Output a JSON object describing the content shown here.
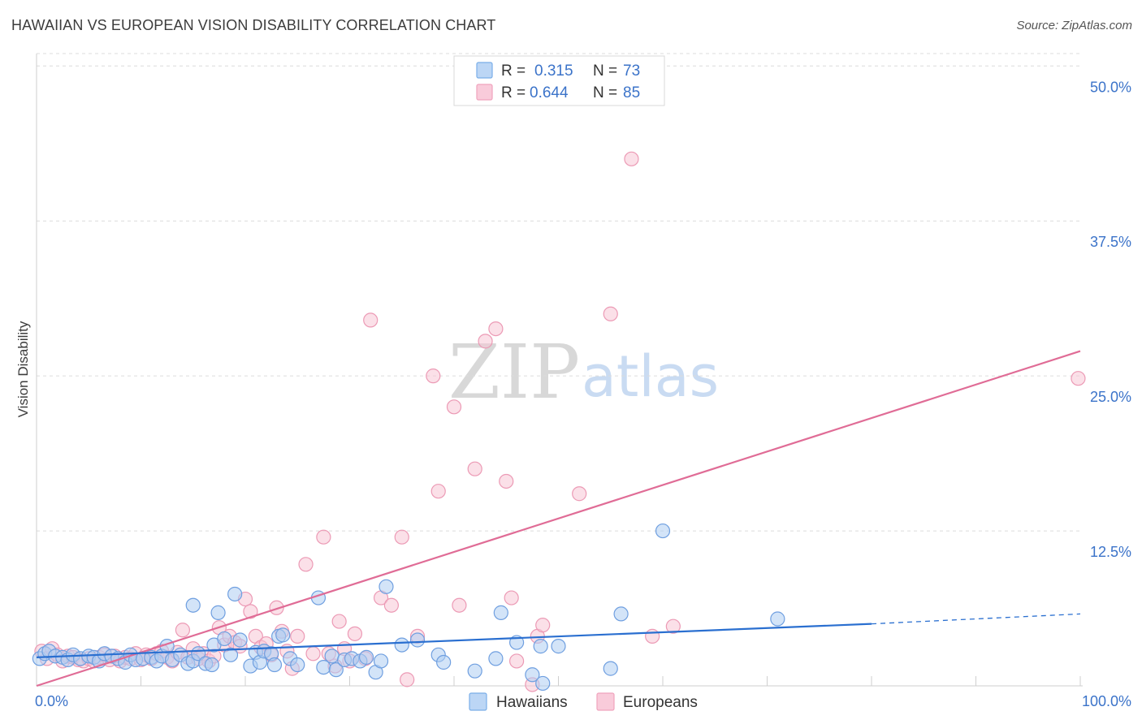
{
  "header": {
    "title": "HAWAIIAN VS EUROPEAN VISION DISABILITY CORRELATION CHART",
    "source": "Source: ZipAtlas.com"
  },
  "watermark": {
    "zip": "ZIP",
    "atlas": "atlas"
  },
  "legend_top": {
    "rows": [
      {
        "r_label": "R =",
        "r_value": "0.315",
        "n_label": "N =",
        "n_value": "73",
        "color": "#7aaee8"
      },
      {
        "r_label": "R =",
        "r_value": "0.644",
        "n_label": "N =",
        "n_value": "85",
        "color": "#f0a3bd"
      }
    ]
  },
  "legend_bottom": {
    "items": [
      {
        "label": "Hawaiians",
        "color": "#7aaee8"
      },
      {
        "label": "Europeans",
        "color": "#f0a3bd"
      }
    ]
  },
  "colors": {
    "hawaiians_fill": "#aecdf3",
    "hawaiians_stroke": "#6f9fe0",
    "hawaiians_line": "#2a6fd0",
    "europeans_fill": "#f8c7d6",
    "europeans_stroke": "#ec9ab5",
    "europeans_line": "#e06c96",
    "grid": "#dcdcdc",
    "tick_text": "#3b73c9"
  },
  "chart_data": {
    "type": "scatter",
    "title": "HAWAIIAN VS EUROPEAN VISION DISABILITY CORRELATION CHART",
    "xlabel": "",
    "ylabel": "Vision Disability",
    "xlim": [
      0,
      100
    ],
    "ylim": [
      0,
      51
    ],
    "x_tick_labels": [
      "0.0%",
      "100.0%"
    ],
    "y_ticks": [
      12.5,
      25.0,
      37.5,
      50.0
    ],
    "y_tick_labels": [
      "12.5%",
      "25.0%",
      "37.5%",
      "50.0%"
    ],
    "grid": true,
    "legend_position": "top-center",
    "series": [
      {
        "name": "Hawaiians",
        "r": 0.315,
        "n": 73,
        "trend": {
          "x0": 0,
          "y0": 2.3,
          "x1": 80,
          "y1": 5.0,
          "dashed_to_x": 100,
          "dashed_to_y": 5.8
        },
        "points": [
          [
            0.3,
            2.2
          ],
          [
            0.8,
            2.6
          ],
          [
            1.2,
            2.8
          ],
          [
            1.8,
            2.4
          ],
          [
            2.5,
            2.3
          ],
          [
            3.0,
            2.1
          ],
          [
            3.5,
            2.5
          ],
          [
            4.2,
            2.2
          ],
          [
            5.0,
            2.4
          ],
          [
            5.5,
            2.3
          ],
          [
            6.0,
            2.0
          ],
          [
            6.5,
            2.6
          ],
          [
            7.2,
            2.4
          ],
          [
            7.8,
            2.2
          ],
          [
            8.5,
            1.9
          ],
          [
            9.0,
            2.5
          ],
          [
            9.5,
            2.1
          ],
          [
            10.2,
            2.2
          ],
          [
            11.0,
            2.3
          ],
          [
            11.5,
            2.0
          ],
          [
            12.0,
            2.4
          ],
          [
            12.5,
            3.2
          ],
          [
            13.0,
            2.1
          ],
          [
            13.8,
            2.5
          ],
          [
            14.5,
            1.8
          ],
          [
            15.0,
            2.0
          ],
          [
            15.5,
            2.6
          ],
          [
            16.2,
            1.8
          ],
          [
            16.8,
            1.7
          ],
          [
            15.0,
            6.5
          ],
          [
            17.0,
            3.3
          ],
          [
            17.4,
            5.9
          ],
          [
            18.0,
            3.8
          ],
          [
            18.6,
            2.5
          ],
          [
            19.0,
            7.4
          ],
          [
            19.5,
            3.7
          ],
          [
            20.5,
            1.6
          ],
          [
            21.0,
            2.7
          ],
          [
            21.4,
            1.9
          ],
          [
            21.8,
            2.8
          ],
          [
            22.5,
            2.6
          ],
          [
            22.8,
            1.7
          ],
          [
            23.2,
            4.0
          ],
          [
            23.6,
            4.1
          ],
          [
            24.3,
            2.2
          ],
          [
            25.0,
            1.7
          ],
          [
            27.0,
            7.1
          ],
          [
            27.5,
            1.5
          ],
          [
            28.3,
            2.4
          ],
          [
            28.7,
            1.3
          ],
          [
            29.5,
            2.1
          ],
          [
            30.2,
            2.2
          ],
          [
            31.0,
            2.0
          ],
          [
            31.6,
            2.3
          ],
          [
            32.5,
            1.1
          ],
          [
            33.0,
            2.0
          ],
          [
            33.5,
            8.0
          ],
          [
            35.0,
            3.3
          ],
          [
            36.5,
            3.7
          ],
          [
            38.5,
            2.5
          ],
          [
            39.0,
            1.9
          ],
          [
            42.0,
            1.2
          ],
          [
            44.0,
            2.2
          ],
          [
            44.5,
            5.9
          ],
          [
            46.0,
            3.5
          ],
          [
            47.5,
            0.9
          ],
          [
            48.3,
            3.2
          ],
          [
            48.5,
            0.2
          ],
          [
            50.0,
            3.2
          ],
          [
            55.0,
            1.4
          ],
          [
            56.0,
            5.8
          ],
          [
            60.0,
            12.5
          ],
          [
            71.0,
            5.4
          ]
        ]
      },
      {
        "name": "Europeans",
        "r": 0.644,
        "n": 85,
        "trend": {
          "x0": 0,
          "y0": 0.0,
          "x1": 100,
          "y1": 27.0
        },
        "points": [
          [
            0.5,
            2.8
          ],
          [
            1.0,
            2.2
          ],
          [
            1.5,
            3.0
          ],
          [
            2.0,
            2.5
          ],
          [
            2.5,
            2.0
          ],
          [
            3.0,
            2.4
          ],
          [
            3.5,
            2.3
          ],
          [
            4.0,
            2.1
          ],
          [
            4.5,
            2.0
          ],
          [
            5.0,
            2.2
          ],
          [
            5.5,
            2.0
          ],
          [
            6.0,
            2.3
          ],
          [
            6.5,
            2.5
          ],
          [
            7.0,
            2.1
          ],
          [
            7.5,
            2.4
          ],
          [
            8.0,
            2.0
          ],
          [
            8.5,
            2.3
          ],
          [
            9.0,
            2.2
          ],
          [
            9.5,
            2.6
          ],
          [
            10.0,
            2.1
          ],
          [
            10.5,
            2.5
          ],
          [
            11.0,
            2.2
          ],
          [
            11.5,
            2.6
          ],
          [
            12.0,
            2.8
          ],
          [
            12.5,
            2.3
          ],
          [
            13.0,
            2.0
          ],
          [
            13.5,
            2.7
          ],
          [
            14.0,
            4.5
          ],
          [
            14.5,
            2.3
          ],
          [
            15.0,
            3.0
          ],
          [
            15.5,
            2.2
          ],
          [
            16.0,
            2.6
          ],
          [
            16.5,
            2.0
          ],
          [
            17.0,
            2.4
          ],
          [
            17.5,
            4.7
          ],
          [
            18.0,
            3.3
          ],
          [
            18.5,
            4.0
          ],
          [
            19.0,
            3.5
          ],
          [
            19.5,
            3.2
          ],
          [
            20.0,
            7.0
          ],
          [
            20.5,
            6.0
          ],
          [
            21.0,
            4.0
          ],
          [
            21.5,
            3.1
          ],
          [
            22.0,
            3.4
          ],
          [
            22.5,
            2.5
          ],
          [
            23.0,
            6.3
          ],
          [
            23.5,
            4.4
          ],
          [
            24.0,
            2.8
          ],
          [
            24.5,
            1.4
          ],
          [
            25.0,
            4.0
          ],
          [
            25.8,
            9.8
          ],
          [
            26.5,
            2.6
          ],
          [
            27.5,
            12.0
          ],
          [
            28.0,
            2.6
          ],
          [
            28.6,
            1.6
          ],
          [
            29.0,
            5.2
          ],
          [
            29.5,
            3.0
          ],
          [
            30.0,
            2.0
          ],
          [
            30.5,
            4.2
          ],
          [
            31.5,
            2.2
          ],
          [
            32.0,
            29.5
          ],
          [
            33.0,
            7.1
          ],
          [
            34.0,
            6.5
          ],
          [
            35.0,
            12.0
          ],
          [
            35.5,
            0.5
          ],
          [
            36.5,
            4.0
          ],
          [
            38.0,
            25.0
          ],
          [
            38.5,
            15.7
          ],
          [
            40.0,
            22.5
          ],
          [
            40.5,
            6.5
          ],
          [
            42.0,
            17.5
          ],
          [
            43.0,
            27.8
          ],
          [
            44.0,
            28.8
          ],
          [
            45.0,
            16.5
          ],
          [
            45.5,
            7.1
          ],
          [
            46.0,
            2.0
          ],
          [
            47.5,
            0.1
          ],
          [
            48.0,
            4.0
          ],
          [
            48.5,
            4.9
          ],
          [
            52.0,
            15.5
          ],
          [
            55.0,
            30.0
          ],
          [
            57.0,
            42.5
          ],
          [
            59.0,
            4.0
          ],
          [
            61.0,
            4.8
          ],
          [
            99.8,
            24.8
          ]
        ]
      }
    ]
  }
}
